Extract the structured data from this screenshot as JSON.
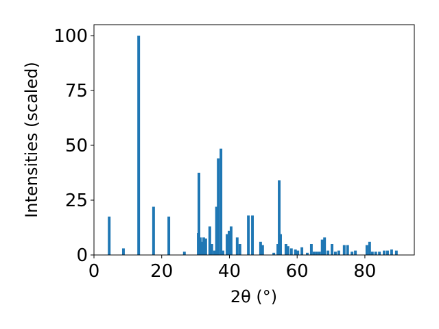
{
  "chart_data": {
    "type": "bar",
    "xlabel": "2θ (°)",
    "ylabel": "Intensities (scaled)",
    "color": "#1f77b4",
    "x": [
      4.5,
      8.7,
      13.2,
      17.6,
      22.1,
      26.7,
      30.8,
      31.0,
      31.4,
      32.0,
      32.4,
      33.0,
      34.2,
      34.8,
      35.6,
      36.2,
      36.7,
      37.5,
      38.1,
      39.3,
      39.9,
      40.5,
      42.3,
      43.1,
      45.6,
      46.8,
      49.2,
      49.8,
      53.1,
      54.3,
      54.7,
      55.1,
      56.7,
      57.3,
      58.3,
      59.5,
      60.2,
      61.4,
      63.0,
      64.2,
      65.0,
      65.8,
      66.6,
      67.4,
      68.1,
      69.1,
      70.3,
      71.3,
      72.3,
      73.9,
      74.9,
      76.2,
      77.2,
      80.6,
      81.4,
      82.2,
      83.2,
      84.3,
      85.7,
      86.7,
      87.9,
      89.3
    ],
    "values": [
      17.5,
      3,
      100,
      22,
      17.5,
      1.5,
      10,
      37.5,
      8,
      6,
      8,
      7.5,
      13,
      5,
      2,
      22,
      44,
      48.5,
      2,
      9.5,
      11,
      13,
      8,
      5,
      18,
      18,
      6,
      4.5,
      1,
      5,
      34,
      9.5,
      5,
      4,
      3,
      2.5,
      2,
      3.5,
      1,
      5,
      1.5,
      1.5,
      1.5,
      7,
      8,
      2,
      5,
      1.5,
      2,
      4.5,
      4.5,
      1.5,
      2,
      4.5,
      6,
      1.5,
      1.5,
      1.5,
      2,
      2,
      2.5,
      2
    ],
    "xlim": [
      0,
      94.6
    ],
    "ylim": [
      0,
      105
    ],
    "xticks": [
      0,
      20,
      40,
      60,
      80
    ],
    "yticks": [
      0,
      25,
      50,
      75,
      100
    ]
  }
}
